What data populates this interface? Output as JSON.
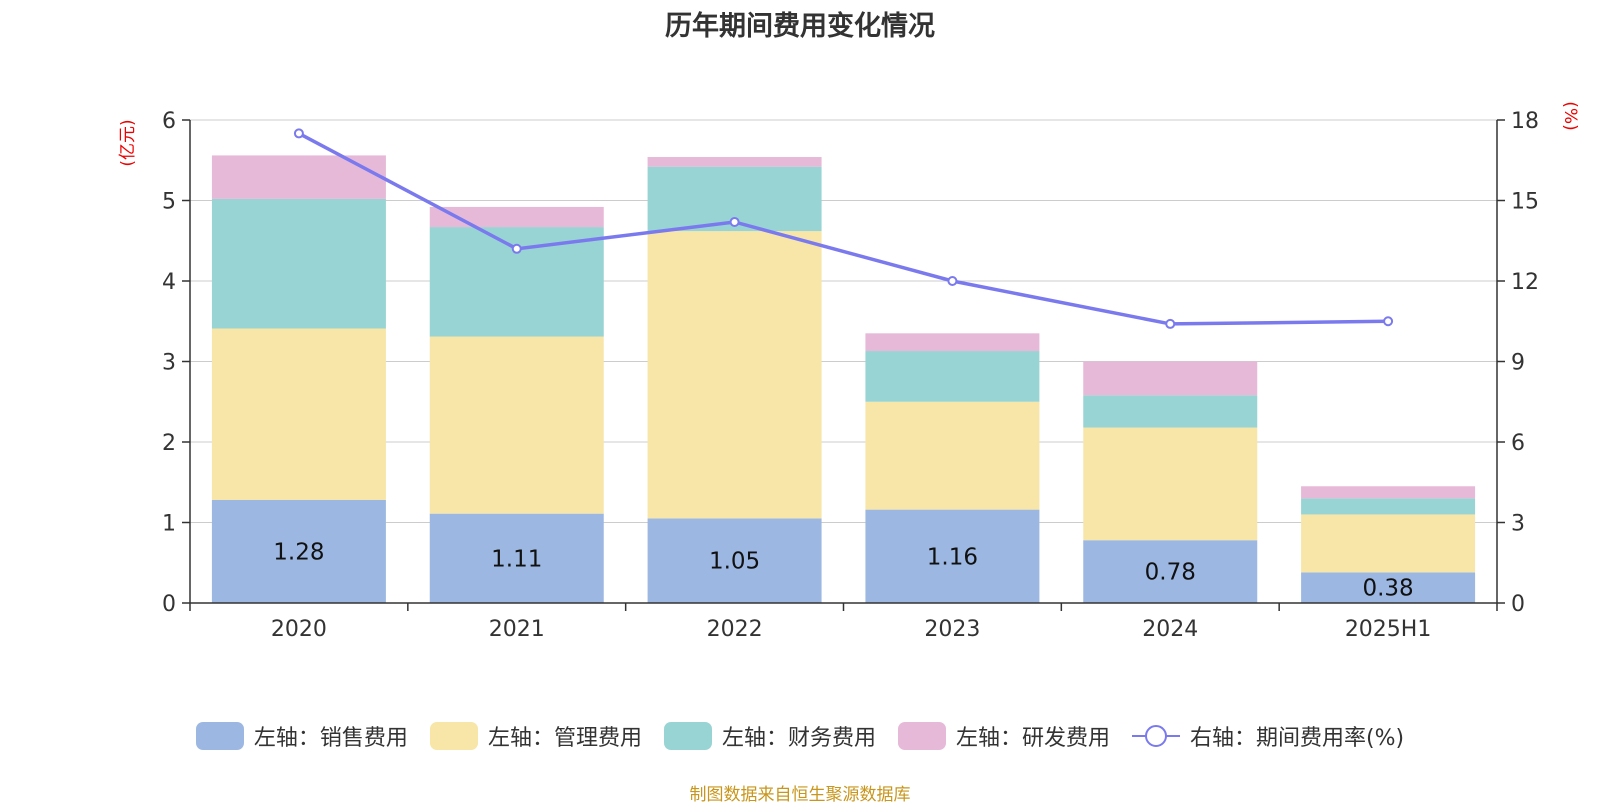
{
  "title": "历年期间费用变化情况",
  "source_note": "制图数据来自恒生聚源数据库",
  "legend": [
    {
      "label": "左轴：销售费用",
      "color": "#9cb8e2",
      "kind": "bar"
    },
    {
      "label": "左轴：管理费用",
      "color": "#f7e6a8",
      "kind": "bar"
    },
    {
      "label": "左轴：财务费用",
      "color": "#98d4d4",
      "kind": "bar"
    },
    {
      "label": "左轴：研发费用",
      "color": "#e6b9d8",
      "kind": "bar"
    },
    {
      "label": "右轴：期间费用率(%)",
      "color": "#7a7aee",
      "kind": "line"
    }
  ],
  "chart_data": {
    "type": "bar",
    "stacked": true,
    "title": "历年期间费用变化情况",
    "categories": [
      "2020",
      "2021",
      "2022",
      "2023",
      "2024",
      "2025H1"
    ],
    "left_axis": {
      "unit": "(亿元)",
      "ylim": [
        0,
        6
      ],
      "ticks": [
        0,
        1,
        2,
        3,
        4,
        5,
        6
      ]
    },
    "right_axis": {
      "unit": "(%)",
      "ylim": [
        0,
        18
      ],
      "ticks": [
        0,
        3,
        6,
        9,
        12,
        15,
        18
      ]
    },
    "grid": true,
    "legend_position": "bottom",
    "series": [
      {
        "name": "左轴：销售费用",
        "axis": "left",
        "type": "bar",
        "color": "#9cb8e2",
        "values": [
          1.28,
          1.11,
          1.05,
          1.16,
          0.78,
          0.38
        ],
        "show_labels": true
      },
      {
        "name": "左轴：管理费用",
        "axis": "left",
        "type": "bar",
        "color": "#f7e6a8",
        "values": [
          2.13,
          2.2,
          3.57,
          1.34,
          1.4,
          0.72
        ]
      },
      {
        "name": "左轴：财务费用",
        "axis": "left",
        "type": "bar",
        "color": "#98d4d4",
        "values": [
          1.61,
          1.36,
          0.8,
          0.63,
          0.4,
          0.2
        ]
      },
      {
        "name": "左轴：研发费用",
        "axis": "left",
        "type": "bar",
        "color": "#e6b9d8",
        "values": [
          0.54,
          0.25,
          0.12,
          0.22,
          0.42,
          0.15
        ]
      },
      {
        "name": "右轴：期间费用率(%)",
        "axis": "right",
        "type": "line",
        "color": "#7a7aee",
        "values": [
          17.5,
          13.2,
          14.2,
          12.0,
          10.4,
          10.5
        ]
      }
    ]
  }
}
